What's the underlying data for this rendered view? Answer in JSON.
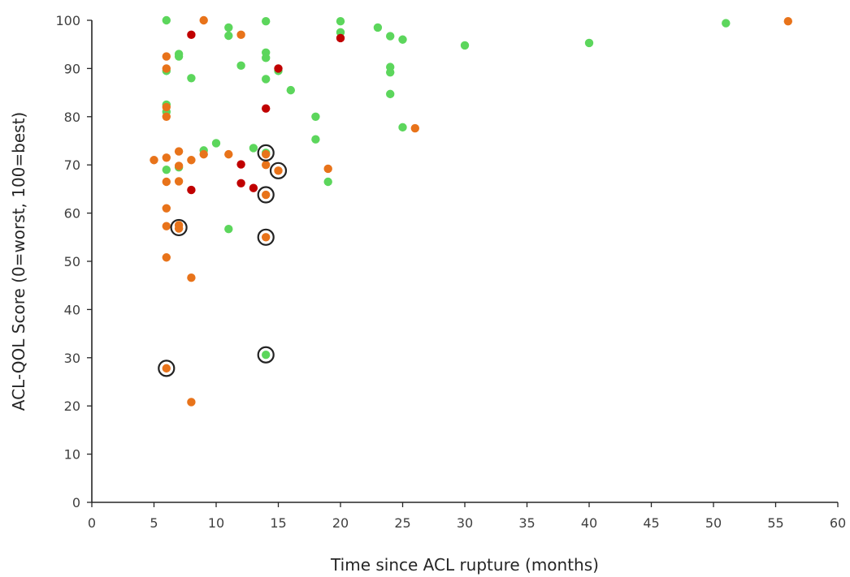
{
  "chart_data": {
    "type": "scatter",
    "xlabel": "Time since ACL rupture (months)",
    "ylabel": "ACL-QOL Score (0=worst, 100=best)",
    "xlim": [
      0,
      60
    ],
    "ylim": [
      0,
      100
    ],
    "x_ticks": [
      0,
      5,
      10,
      15,
      20,
      25,
      30,
      35,
      40,
      45,
      50,
      55,
      60
    ],
    "y_ticks": [
      0,
      10,
      20,
      30,
      40,
      50,
      60,
      70,
      80,
      90,
      100
    ],
    "grid": false,
    "legend": "none",
    "colors": {
      "green": "#5cd65c",
      "orange": "#e8731a",
      "red": "#c00000",
      "ring": "#222222"
    },
    "series": [
      {
        "color_key": "green",
        "points": [
          [
            6,
            100
          ],
          [
            6,
            89.5
          ],
          [
            6,
            82.5
          ],
          [
            6,
            81
          ],
          [
            6,
            69
          ],
          [
            7,
            93
          ],
          [
            7,
            92.5
          ],
          [
            7,
            69.5
          ],
          [
            8,
            88
          ],
          [
            9,
            73
          ],
          [
            10,
            74.5
          ],
          [
            11,
            98.5
          ],
          [
            11,
            96.8
          ],
          [
            11,
            56.7
          ],
          [
            12,
            90.6
          ],
          [
            13,
            73.5
          ],
          [
            14,
            99.8
          ],
          [
            14,
            93.3
          ],
          [
            14,
            92.2
          ],
          [
            14,
            87.8
          ],
          [
            14,
            72.5
          ],
          [
            14,
            30.6
          ],
          [
            15,
            89.5
          ],
          [
            16,
            85.5
          ],
          [
            18,
            80
          ],
          [
            18,
            75.3
          ],
          [
            19,
            66.5
          ],
          [
            20,
            99.8
          ],
          [
            20,
            97.5
          ],
          [
            23,
            98.5
          ],
          [
            24,
            96.7
          ],
          [
            24,
            90.3
          ],
          [
            24,
            89.2
          ],
          [
            24,
            84.7
          ],
          [
            25,
            96
          ],
          [
            25,
            77.8
          ],
          [
            30,
            94.8
          ],
          [
            40,
            95.3
          ],
          [
            51,
            99.4
          ]
        ]
      },
      {
        "color_key": "orange",
        "points": [
          [
            5,
            71
          ],
          [
            6,
            92.5
          ],
          [
            6,
            90
          ],
          [
            6,
            82
          ],
          [
            6,
            80
          ],
          [
            6,
            71.5
          ],
          [
            6,
            66.5
          ],
          [
            6,
            61
          ],
          [
            6,
            57.3
          ],
          [
            6,
            50.8
          ],
          [
            6,
            27.8
          ],
          [
            7,
            72.8
          ],
          [
            7,
            69.8
          ],
          [
            7,
            66.6
          ],
          [
            7,
            57.5
          ],
          [
            7,
            56.8
          ],
          [
            8,
            71
          ],
          [
            8,
            46.6
          ],
          [
            8,
            20.8
          ],
          [
            9,
            100
          ],
          [
            9,
            72.2
          ],
          [
            11,
            72.2
          ],
          [
            12,
            97
          ],
          [
            14,
            72.2
          ],
          [
            14,
            70
          ],
          [
            14,
            63.8
          ],
          [
            14,
            55
          ],
          [
            15,
            68.8
          ],
          [
            19,
            69.2
          ],
          [
            26,
            77.6
          ],
          [
            56,
            99.8
          ]
        ]
      },
      {
        "color_key": "red",
        "points": [
          [
            8,
            97
          ],
          [
            8,
            64.8
          ],
          [
            12,
            70.1
          ],
          [
            12,
            66.2
          ],
          [
            13,
            65.2
          ],
          [
            14,
            81.7
          ],
          [
            15,
            90
          ],
          [
            20,
            96.3
          ]
        ]
      }
    ],
    "circled_points": [
      [
        14,
        72.5
      ],
      [
        15,
        68.8
      ],
      [
        14,
        63.8
      ],
      [
        7,
        57
      ],
      [
        14,
        55
      ],
      [
        14,
        30.6
      ],
      [
        6,
        27.8
      ]
    ]
  }
}
